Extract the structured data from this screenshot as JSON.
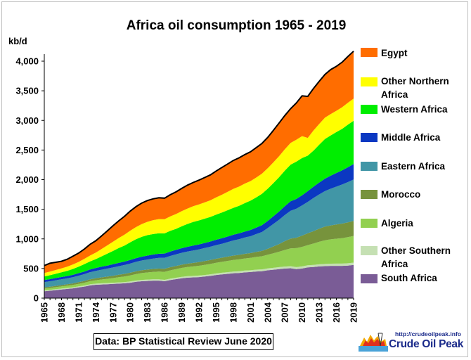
{
  "chart_data": {
    "type": "area",
    "stacked": true,
    "title": "Africa oil consumption  1965 - 2019",
    "ylabel": "kb/d",
    "ylim": [
      0,
      4000
    ],
    "yticks": [
      "0",
      "500",
      "1,000",
      "1,500",
      "2,000",
      "2,500",
      "3,000",
      "3,500",
      "4,000"
    ],
    "xticks": [
      "1965",
      "1968",
      "1971",
      "1974",
      "1977",
      "1980",
      "1983",
      "1986",
      "1989",
      "1992",
      "1995",
      "1998",
      "2001",
      "2004",
      "2007",
      "2010",
      "2013",
      "2016",
      "2019"
    ],
    "legend_position": "right",
    "x": [
      1965,
      1966,
      1967,
      1968,
      1969,
      1970,
      1971,
      1972,
      1973,
      1974,
      1975,
      1976,
      1977,
      1978,
      1979,
      1980,
      1981,
      1982,
      1983,
      1984,
      1985,
      1986,
      1987,
      1988,
      1989,
      1990,
      1991,
      1992,
      1993,
      1994,
      1995,
      1996,
      1997,
      1998,
      1999,
      2000,
      2001,
      2002,
      2003,
      2004,
      2005,
      2006,
      2007,
      2008,
      2009,
      2010,
      2011,
      2012,
      2013,
      2014,
      2015,
      2016,
      2017,
      2018,
      2019
    ],
    "series": [
      {
        "name": "South Africa",
        "color": "#7a5c96",
        "values": [
          115,
          125,
          135,
          145,
          155,
          165,
          180,
          195,
          215,
          225,
          230,
          235,
          240,
          245,
          250,
          260,
          275,
          285,
          290,
          295,
          295,
          285,
          305,
          320,
          335,
          345,
          350,
          355,
          365,
          375,
          390,
          400,
          410,
          420,
          425,
          435,
          440,
          450,
          455,
          470,
          480,
          490,
          500,
          505,
          490,
          500,
          520,
          525,
          535,
          540,
          545,
          545,
          545,
          550,
          560
        ]
      },
      {
        "name": "Other Southern Africa",
        "color": "#c5e0b3",
        "values": [
          15,
          15,
          16,
          16,
          17,
          17,
          18,
          18,
          19,
          19,
          20,
          20,
          20,
          21,
          21,
          22,
          22,
          22,
          23,
          23,
          23,
          24,
          24,
          24,
          25,
          25,
          25,
          26,
          26,
          27,
          27,
          28,
          28,
          29,
          29,
          30,
          30,
          31,
          31,
          32,
          32,
          33,
          33,
          34,
          34,
          35,
          35,
          36,
          36,
          37,
          37,
          38,
          38,
          39,
          39
        ]
      },
      {
        "name": "Algeria",
        "color": "#92d050",
        "values": [
          30,
          32,
          34,
          36,
          38,
          40,
          43,
          47,
          52,
          58,
          64,
          70,
          78,
          86,
          94,
          100,
          108,
          115,
          120,
          125,
          130,
          135,
          140,
          145,
          150,
          155,
          160,
          165,
          170,
          175,
          180,
          185,
          190,
          195,
          200,
          205,
          210,
          215,
          220,
          230,
          245,
          260,
          280,
          300,
          320,
          330,
          340,
          360,
          380,
          400,
          410,
          420,
          430,
          440,
          450
        ]
      },
      {
        "name": "Morocco",
        "color": "#77933c",
        "values": [
          20,
          21,
          22,
          23,
          24,
          26,
          28,
          30,
          32,
          34,
          36,
          38,
          40,
          42,
          44,
          46,
          47,
          48,
          49,
          50,
          51,
          52,
          53,
          54,
          55,
          57,
          60,
          62,
          64,
          66,
          68,
          70,
          72,
          74,
          76,
          78,
          80,
          85,
          90,
          100,
          115,
          130,
          150,
          165,
          175,
          190,
          200,
          210,
          220,
          230,
          235,
          240,
          245,
          250,
          255
        ]
      },
      {
        "name": "Eastern Africa",
        "color": "#4196a6",
        "values": [
          90,
          92,
          95,
          98,
          100,
          105,
          110,
          115,
          120,
          125,
          130,
          135,
          140,
          145,
          150,
          155,
          160,
          165,
          170,
          175,
          180,
          185,
          190,
          195,
          200,
          205,
          210,
          215,
          220,
          225,
          230,
          235,
          245,
          255,
          265,
          275,
          285,
          300,
          320,
          350,
          380,
          410,
          440,
          470,
          490,
          510,
          530,
          560,
          580,
          600,
          620,
          640,
          660,
          680,
          700
        ]
      },
      {
        "name": "Middle Africa",
        "color": "#0b38c2",
        "values": [
          35,
          36,
          37,
          38,
          39,
          40,
          42,
          44,
          46,
          48,
          50,
          52,
          54,
          56,
          58,
          60,
          62,
          64,
          66,
          68,
          70,
          72,
          74,
          76,
          78,
          80,
          82,
          84,
          86,
          88,
          90,
          92,
          94,
          96,
          98,
          100,
          105,
          110,
          115,
          120,
          130,
          140,
          150,
          160,
          165,
          170,
          180,
          190,
          200,
          210,
          220,
          230,
          240,
          250,
          260
        ]
      },
      {
        "name": "Western Africa",
        "color": "#00ee00",
        "values": [
          60,
          66,
          72,
          80,
          88,
          100,
          110,
          125,
          135,
          150,
          175,
          200,
          225,
          250,
          270,
          300,
          320,
          335,
          345,
          345,
          345,
          340,
          350,
          355,
          370,
          385,
          400,
          405,
          410,
          415,
          425,
          435,
          445,
          455,
          465,
          480,
          495,
          510,
          530,
          545,
          560,
          580,
          600,
          620,
          630,
          630,
          600,
          610,
          640,
          670,
          680,
          690,
          700,
          720,
          730
        ]
      },
      {
        "name": "Other Northern Africa",
        "color": "#ffff00",
        "values": [
          60,
          62,
          64,
          66,
          70,
          75,
          80,
          90,
          100,
          110,
          125,
          140,
          155,
          170,
          185,
          195,
          205,
          215,
          225,
          235,
          240,
          240,
          245,
          250,
          255,
          260,
          265,
          270,
          275,
          280,
          290,
          300,
          310,
          320,
          325,
          330,
          330,
          335,
          340,
          345,
          350,
          355,
          360,
          365,
          370,
          370,
          300,
          340,
          350,
          360,
          360,
          360,
          365,
          370,
          375
        ]
      },
      {
        "name": "Egypt",
        "color": "#ff6d00",
        "values": [
          125,
          140,
          130,
          120,
          125,
          140,
          150,
          165,
          190,
          200,
          220,
          245,
          270,
          290,
          310,
          330,
          345,
          355,
          360,
          360,
          360,
          355,
          365,
          375,
          385,
          395,
          400,
          410,
          420,
          430,
          445,
          460,
          470,
          480,
          485,
          490,
          495,
          505,
          510,
          520,
          540,
          560,
          570,
          580,
          620,
          680,
          700,
          710,
          720,
          730,
          750,
          750,
          760,
          780,
          800
        ]
      }
    ]
  },
  "source_note": "Data: BP Statistical Review June 2020",
  "logo": {
    "url_text": "http://crudeoilpeak.info",
    "name": "Crude Oil Peak"
  },
  "legend_labels": {
    "egypt": "Egypt",
    "other_northern_1": "Other Northern",
    "other_northern_2": "Africa",
    "western": "Western Africa",
    "middle": "Middle Africa",
    "eastern": "Eastern Africa",
    "morocco": "Morocco",
    "algeria": "Algeria",
    "other_southern_1": "Other Southern",
    "other_southern_2": "Africa",
    "south_africa": "South Africa"
  }
}
